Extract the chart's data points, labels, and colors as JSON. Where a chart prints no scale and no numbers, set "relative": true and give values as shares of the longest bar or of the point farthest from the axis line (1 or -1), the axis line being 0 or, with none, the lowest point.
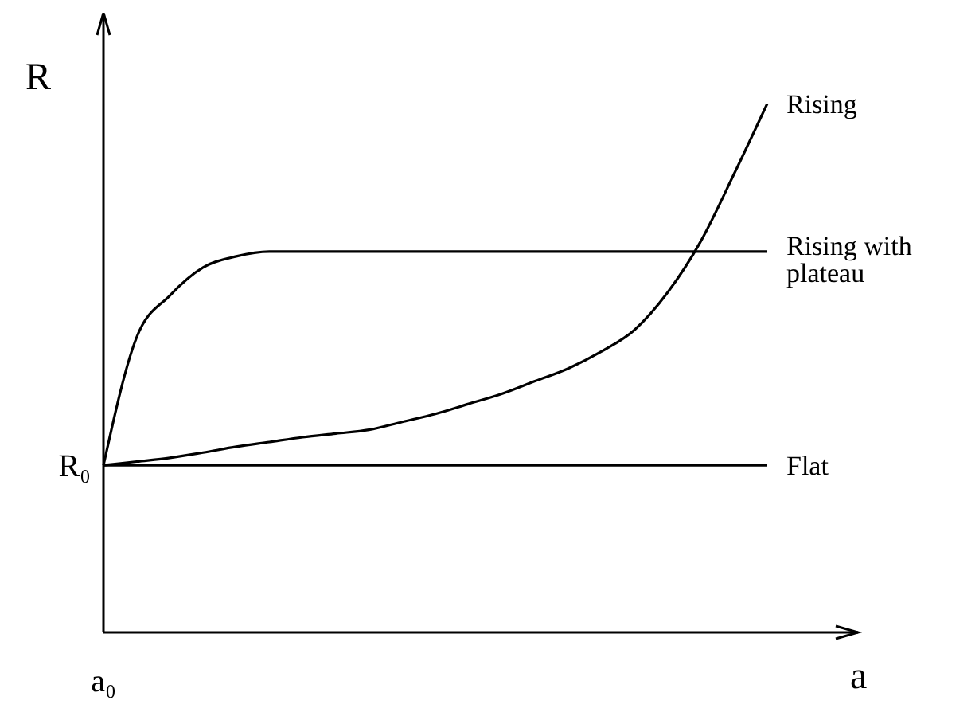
{
  "chart_data": {
    "type": "line",
    "xlabel": "a",
    "ylabel": "R",
    "relative": true,
    "categories": [
      null,
      null,
      null,
      null,
      null,
      null,
      null,
      null,
      null,
      null,
      null,
      null,
      null,
      null,
      null,
      null,
      null,
      null,
      null,
      null,
      null
    ],
    "series": [
      {
        "name": "Rising",
        "color": "#000000",
        "values": [
          0.316,
          0.323,
          0.33,
          0.34,
          0.351,
          0.36,
          0.369,
          0.376,
          0.383,
          0.398,
          0.413,
          0.432,
          0.451,
          0.475,
          0.499,
          0.531,
          0.572,
          0.643,
          0.74,
          0.867,
          1
        ]
      },
      {
        "name": "Rising with plateau",
        "color": "#000000",
        "values": [
          0.316,
          0.558,
          0.637,
          0.69,
          0.711,
          0.72,
          0.72,
          0.72,
          0.72,
          0.72,
          0.72,
          0.72,
          0.72,
          0.72,
          0.72,
          0.72,
          0.72,
          0.72,
          0.72,
          0.72,
          0.72
        ]
      },
      {
        "name": "Flat",
        "color": "#000000",
        "values": [
          0.316,
          0.316,
          0.316,
          0.316,
          0.316,
          0.316,
          0.316,
          0.316,
          0.316,
          0.316,
          0.316,
          0.316,
          0.316,
          0.316,
          0.316,
          0.316,
          0.316,
          0.316,
          0.316,
          0.316,
          0.316
        ]
      }
    ],
    "annotations": [
      "R₀",
      "a₀"
    ]
  }
}
